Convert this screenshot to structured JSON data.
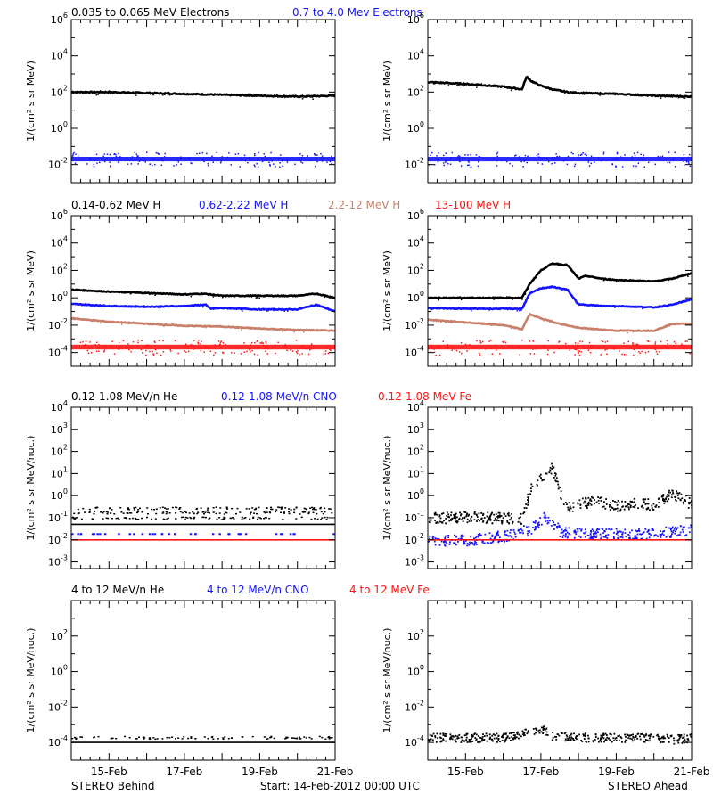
{
  "colors": {
    "black": "#000000",
    "blue": "#1414ff",
    "tan": "#c8806a",
    "red": "#ff1414",
    "axis": "#000000"
  },
  "footer": {
    "left": "STEREO Behind",
    "center": "Start: 14-Feb-2012 00:00 UTC",
    "right": "STEREO Ahead"
  },
  "chart_data": [
    {
      "type": "scatter",
      "row": 0,
      "side": "behind",
      "ylabel": "1/(cm² s sr MeV)",
      "ylog": true,
      "ylim": [
        -3,
        6
      ],
      "yticks": [
        -2,
        0,
        2,
        4,
        6
      ],
      "xlim": [
        0,
        7
      ],
      "xticks": [
        1,
        3,
        5,
        7
      ],
      "xticklabels": [
        "15-Feb",
        "17-Feb",
        "19-Feb",
        "21-Feb"
      ],
      "legend": [
        {
          "text": "0.035 to 0.065 MeV Electrons",
          "color": "#000000"
        },
        {
          "text": "0.7 to 4.0 Mev Electrons",
          "color": "#1414ff"
        }
      ],
      "series": [
        {
          "name": "0.035 to 0.065 MeV Electrons",
          "color": "#000000",
          "style": "line",
          "x": [
            0,
            1,
            2,
            3,
            4,
            5,
            6,
            7
          ],
          "logy": [
            2.0,
            2.0,
            1.95,
            1.9,
            1.85,
            1.8,
            1.75,
            1.8
          ]
        },
        {
          "name": "0.7 to 4.0 Mev Electrons",
          "color": "#1414ff",
          "style": "band",
          "x": [
            0,
            7
          ],
          "logy": [
            -1.7,
            -1.7
          ],
          "spread": 0.25
        }
      ]
    },
    {
      "type": "scatter",
      "row": 0,
      "side": "ahead",
      "ylabel": "1/(cm² s sr MeV)",
      "ylog": true,
      "ylim": [
        -3,
        6
      ],
      "yticks": [
        -2,
        0,
        2,
        4,
        6
      ],
      "xlim": [
        0,
        7
      ],
      "xticks": [
        1,
        3,
        5,
        7
      ],
      "xticklabels": [
        "15-Feb",
        "17-Feb",
        "19-Feb",
        "21-Feb"
      ],
      "series": [
        {
          "name": "0.035 to 0.065 MeV Electrons",
          "color": "#000000",
          "style": "line",
          "x": [
            0,
            1,
            2,
            2.5,
            2.62,
            2.75,
            3,
            3.3,
            3.7,
            4,
            5,
            6,
            7
          ],
          "logy": [
            2.55,
            2.45,
            2.3,
            2.15,
            2.85,
            2.6,
            2.35,
            2.15,
            2.0,
            1.95,
            1.9,
            1.8,
            1.75
          ]
        },
        {
          "name": "0.7 to 4.0 Mev Electrons",
          "color": "#1414ff",
          "style": "band",
          "x": [
            0,
            7
          ],
          "logy": [
            -1.7,
            -1.75
          ],
          "spread": 0.25
        }
      ]
    },
    {
      "type": "scatter",
      "row": 1,
      "side": "behind",
      "ylabel": "1/(cm² s sr MeV)",
      "ylog": true,
      "ylim": [
        -5,
        6
      ],
      "yticks": [
        -4,
        -2,
        0,
        2,
        4,
        6
      ],
      "xlim": [
        0,
        7
      ],
      "xticks": [
        1,
        3,
        5,
        7
      ],
      "xticklabels": [
        "15-Feb",
        "17-Feb",
        "19-Feb",
        "21-Feb"
      ],
      "legend": [
        {
          "text": "0.14-0.62 MeV H",
          "color": "#000000"
        },
        {
          "text": "0.62-2.22 MeV H",
          "color": "#1414ff"
        },
        {
          "text": "2.2-12 MeV H",
          "color": "#c8806a"
        },
        {
          "text": "13-100 MeV H",
          "color": "#ff1414"
        }
      ],
      "series": [
        {
          "name": "0.14-0.62 MeV H",
          "color": "#000000",
          "style": "line",
          "x": [
            0,
            1,
            2,
            3,
            3.5,
            4,
            5,
            6,
            6.5,
            7
          ],
          "logy": [
            0.6,
            0.45,
            0.35,
            0.25,
            0.3,
            0.15,
            0.15,
            0.15,
            0.3,
            0.0
          ]
        },
        {
          "name": "0.62-2.22 MeV H",
          "color": "#1414ff",
          "style": "line",
          "x": [
            0,
            1,
            2,
            3,
            3.55,
            3.7,
            4,
            5,
            6,
            6.5,
            7
          ],
          "logy": [
            -0.45,
            -0.6,
            -0.65,
            -0.6,
            -0.5,
            -0.8,
            -0.75,
            -0.85,
            -0.85,
            -0.5,
            -1.0
          ]
        },
        {
          "name": "2.2-12 MeV H",
          "color": "#c8806a",
          "style": "line",
          "x": [
            0,
            1,
            2,
            3,
            4,
            5,
            6,
            7
          ],
          "logy": [
            -1.5,
            -1.75,
            -1.9,
            -2.05,
            -2.1,
            -2.25,
            -2.35,
            -2.4
          ]
        },
        {
          "name": "13-100 MeV H",
          "color": "#ff1414",
          "style": "band",
          "x": [
            0,
            7
          ],
          "logy": [
            -3.6,
            -3.6
          ],
          "spread": 0.35
        }
      ]
    },
    {
      "type": "scatter",
      "row": 1,
      "side": "ahead",
      "ylabel": "1/(cm² s sr MeV)",
      "ylog": true,
      "ylim": [
        -5,
        6
      ],
      "yticks": [
        -4,
        -2,
        0,
        2,
        4,
        6
      ],
      "xlim": [
        0,
        7
      ],
      "xticks": [
        1,
        3,
        5,
        7
      ],
      "xticklabels": [
        "15-Feb",
        "17-Feb",
        "19-Feb",
        "21-Feb"
      ],
      "series": [
        {
          "name": "0.14-0.62 MeV H",
          "color": "#000000",
          "style": "line",
          "x": [
            0,
            1,
            2,
            2.5,
            2.7,
            3,
            3.3,
            3.7,
            4,
            4.2,
            4.6,
            5,
            6,
            6.5,
            7
          ],
          "logy": [
            0.0,
            0.0,
            0.0,
            0.0,
            1.0,
            2.0,
            2.5,
            2.4,
            1.4,
            1.6,
            1.4,
            1.3,
            1.2,
            1.4,
            1.8
          ]
        },
        {
          "name": "0.62-2.22 MeV H",
          "color": "#1414ff",
          "style": "line",
          "x": [
            0,
            1,
            2,
            2.5,
            2.7,
            3,
            3.3,
            3.7,
            4,
            4.2,
            4.6,
            5,
            6,
            6.5,
            7
          ],
          "logy": [
            -0.75,
            -0.8,
            -0.8,
            -0.8,
            0.3,
            0.7,
            0.8,
            0.6,
            -0.5,
            -0.5,
            -0.6,
            -0.6,
            -0.7,
            -0.5,
            -0.1
          ]
        },
        {
          "name": "2.2-12 MeV H",
          "color": "#c8806a",
          "style": "line",
          "x": [
            0,
            1,
            2,
            2.5,
            2.7,
            3,
            3.5,
            4,
            5,
            6,
            6.5,
            7
          ],
          "logy": [
            -1.6,
            -1.8,
            -2.0,
            -2.3,
            -1.2,
            -1.5,
            -1.9,
            -2.2,
            -2.4,
            -2.4,
            -1.9,
            -1.9
          ]
        },
        {
          "name": "13-100 MeV H",
          "color": "#ff1414",
          "style": "band",
          "x": [
            0,
            7
          ],
          "logy": [
            -3.6,
            -3.6
          ],
          "spread": 0.35
        }
      ]
    },
    {
      "type": "scatter",
      "row": 2,
      "side": "behind",
      "ylabel": "1/(cm² s sr MeV/nuc.)",
      "ylog": true,
      "ylim": [
        -3.3,
        4
      ],
      "yticks": [
        -3,
        -2,
        -1,
        0,
        1,
        2,
        3,
        4
      ],
      "xlim": [
        0,
        7
      ],
      "xticks": [
        1,
        3,
        5,
        7
      ],
      "xticklabels": [
        "15-Feb",
        "17-Feb",
        "19-Feb",
        "21-Feb"
      ],
      "legend": [
        {
          "text": "0.12-1.08 MeV/n He",
          "color": "#000000"
        },
        {
          "text": "0.12-1.08 MeV/n CNO",
          "color": "#1414ff"
        },
        {
          "text": "0.12-1.08 MeV Fe",
          "color": "#ff1414"
        }
      ],
      "series": [
        {
          "name": "0.12-1.08 MeV/n He",
          "color": "#000000",
          "style": "levels",
          "x": [
            0,
            7
          ],
          "logy": [
            -1.3,
            -1.3
          ],
          "levels": [
            -1.3,
            -1.0,
            -0.75,
            -0.55
          ]
        },
        {
          "name": "0.12-1.08 MeV/n CNO",
          "color": "#1414ff",
          "style": "sparse",
          "x": [
            0,
            7
          ],
          "logy": [
            -1.7,
            -1.7
          ]
        },
        {
          "name": "0.12-1.08 MeV Fe",
          "color": "#ff1414",
          "style": "levels",
          "x": [
            0,
            7
          ],
          "logy": [
            -2.0,
            -2.0
          ],
          "levels": [
            -2.0
          ]
        }
      ]
    },
    {
      "type": "scatter",
      "row": 2,
      "side": "ahead",
      "ylabel": "1/(cm² s sr MeV/nuc.)",
      "ylog": true,
      "ylim": [
        -3.3,
        4
      ],
      "yticks": [
        -3,
        -2,
        -1,
        0,
        1,
        2,
        3,
        4
      ],
      "xlim": [
        0,
        7
      ],
      "xticks": [
        1,
        3,
        5,
        7
      ],
      "xticklabels": [
        "15-Feb",
        "17-Feb",
        "19-Feb",
        "21-Feb"
      ],
      "series": [
        {
          "name": "0.12-1.08 MeV/n He",
          "color": "#000000",
          "style": "scatter",
          "x": [
            0,
            1,
            2,
            2.5,
            2.7,
            2.9,
            3.1,
            3.3,
            3.45,
            3.6,
            3.8,
            4.0,
            4.5,
            5.0,
            5.5,
            6.0,
            6.4,
            6.7,
            7.0
          ],
          "logy": [
            -1.0,
            -0.95,
            -1.0,
            -1.0,
            0.3,
            0.6,
            1.1,
            1.25,
            0.4,
            -0.3,
            -0.55,
            -0.3,
            -0.25,
            -0.45,
            -0.3,
            -0.4,
            0.1,
            0.0,
            -0.4
          ]
        },
        {
          "name": "0.12-1.08 MeV/n CNO",
          "color": "#1414ff",
          "style": "scatter",
          "x": [
            0,
            1,
            2,
            2.7,
            2.9,
            3.1,
            3.3,
            3.5,
            4,
            5,
            6,
            7
          ],
          "logy": [
            -2.0,
            -2.0,
            -1.8,
            -1.5,
            -1.3,
            -0.9,
            -1.2,
            -1.6,
            -1.7,
            -1.7,
            -1.7,
            -1.5
          ]
        },
        {
          "name": "0.12-1.08 MeV Fe",
          "color": "#ff1414",
          "style": "levels",
          "x": [
            0,
            7
          ],
          "logy": [
            -2.0,
            -2.0
          ],
          "levels": [
            -2.0
          ]
        }
      ]
    },
    {
      "type": "scatter",
      "row": 3,
      "side": "behind",
      "ylabel": "1/(cm² s sr MeV/nuc.)",
      "ylog": true,
      "ylim": [
        -5,
        4
      ],
      "yticks": [
        -4,
        -2,
        0,
        2
      ],
      "xlim": [
        0,
        7
      ],
      "xticks": [
        1,
        3,
        5,
        7
      ],
      "xticklabels": [
        "15-Feb",
        "17-Feb",
        "19-Feb",
        "21-Feb"
      ],
      "legend": [
        {
          "text": "4 to 12 MeV/n He",
          "color": "#000000"
        },
        {
          "text": "4 to 12 MeV/n CNO",
          "color": "#1414ff"
        },
        {
          "text": "4 to 12 MeV Fe",
          "color": "#ff1414"
        }
      ],
      "series": [
        {
          "name": "4 to 12 MeV/n He",
          "color": "#000000",
          "style": "levels",
          "x": [
            0,
            7
          ],
          "logy": [
            -4.0,
            -4.0
          ],
          "levels": [
            -4.0,
            -3.7
          ]
        },
        {
          "name": "4 to 12 MeV/n CNO",
          "color": "#1414ff",
          "style": "sparse",
          "x": [
            0,
            7
          ],
          "logy": [
            -5.0,
            -5.0
          ]
        },
        {
          "name": "4 to 12 MeV Fe",
          "color": "#ff1414",
          "style": "sparse",
          "x": [
            0,
            7
          ],
          "logy": [
            -5.05,
            -5.05
          ]
        }
      ]
    },
    {
      "type": "scatter",
      "row": 3,
      "side": "ahead",
      "ylabel": "1/(cm² s sr MeV/nuc.)",
      "ylog": true,
      "ylim": [
        -5,
        4
      ],
      "yticks": [
        -4,
        -2,
        0,
        2
      ],
      "xlim": [
        0,
        7
      ],
      "xticks": [
        1,
        3,
        5,
        7
      ],
      "xticklabels": [
        "15-Feb",
        "17-Feb",
        "19-Feb",
        "21-Feb"
      ],
      "series": [
        {
          "name": "4 to 12 MeV/n He",
          "color": "#000000",
          "style": "scatter",
          "x": [
            0,
            1,
            2,
            2.7,
            2.9,
            3.1,
            3.3,
            4,
            5,
            6,
            6.5,
            7
          ],
          "logy": [
            -3.7,
            -3.7,
            -3.7,
            -3.4,
            -3.2,
            -3.3,
            -3.6,
            -3.7,
            -3.7,
            -3.7,
            -3.8,
            -3.7
          ]
        },
        {
          "name": "4 to 12 MeV/n CNO",
          "color": "#1414ff",
          "style": "sparse",
          "x": [
            0,
            7
          ],
          "logy": [
            -5.0,
            -5.0
          ]
        },
        {
          "name": "4 to 12 MeV Fe",
          "color": "#ff1414",
          "style": "sparse",
          "x": [
            0,
            7
          ],
          "logy": [
            -5.05,
            -5.05
          ]
        }
      ]
    }
  ]
}
